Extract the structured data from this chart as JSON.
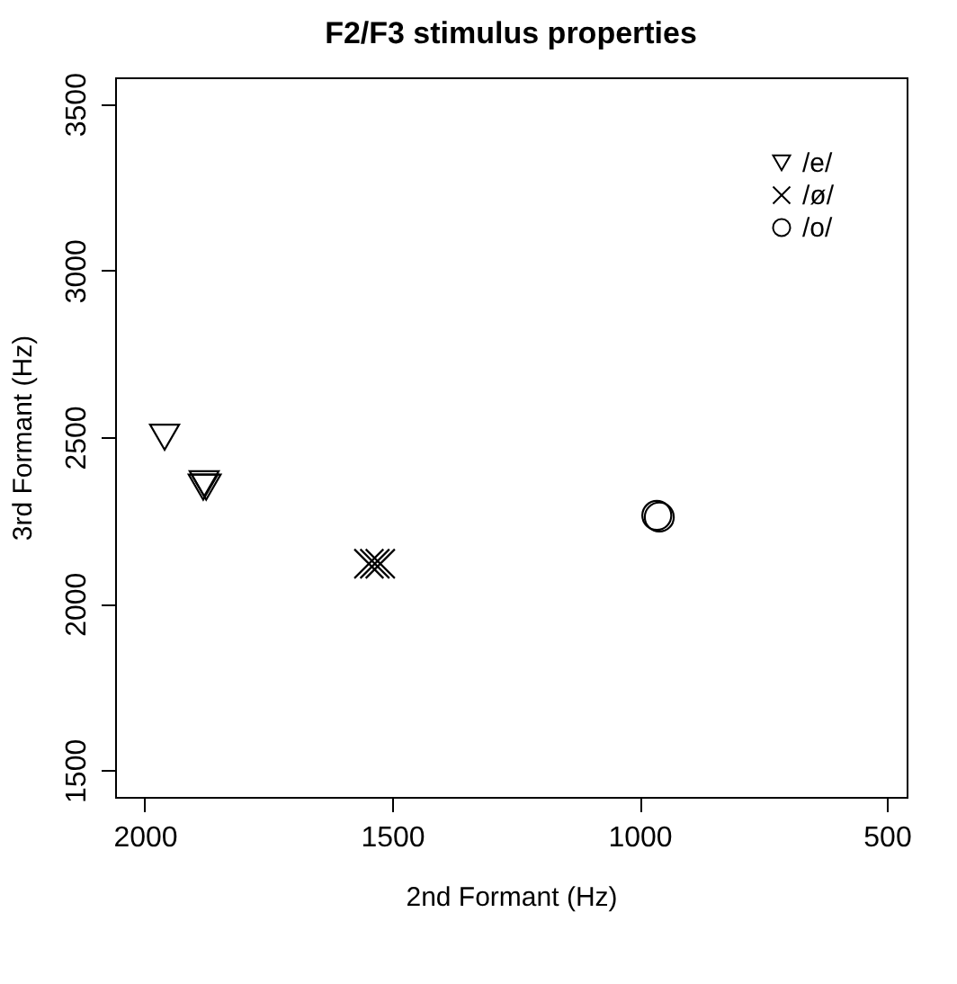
{
  "chart_data": {
    "type": "scatter",
    "title": "F2/F3 stimulus properties",
    "xlabel": "2nd Formant (Hz)",
    "ylabel": "3rd Formant (Hz)",
    "xlim": [
      2060,
      460
    ],
    "xticks": [
      2000,
      1500,
      1000,
      500
    ],
    "ylim": [
      1420,
      3580
    ],
    "yticks": [
      1500,
      2000,
      2500,
      3000,
      3500
    ],
    "grid": false,
    "legend": "top right",
    "series": [
      {
        "name": "/e/",
        "color": "#000000",
        "marker": "triangle",
        "x": [
          1960,
          1882,
          1876,
          1880
        ],
        "values": [
          2500,
          2350,
          2350,
          2360
        ]
      },
      {
        "name": "/ø/",
        "color": "#000000",
        "marker": "cross",
        "x": [
          1547,
          1535,
          1524
        ],
        "values": [
          2120,
          2120,
          2120
        ]
      },
      {
        "name": "/o/",
        "color": "#000000",
        "marker": "circle",
        "x": [
          965,
          960
        ],
        "values": [
          2265,
          2260
        ]
      }
    ]
  }
}
